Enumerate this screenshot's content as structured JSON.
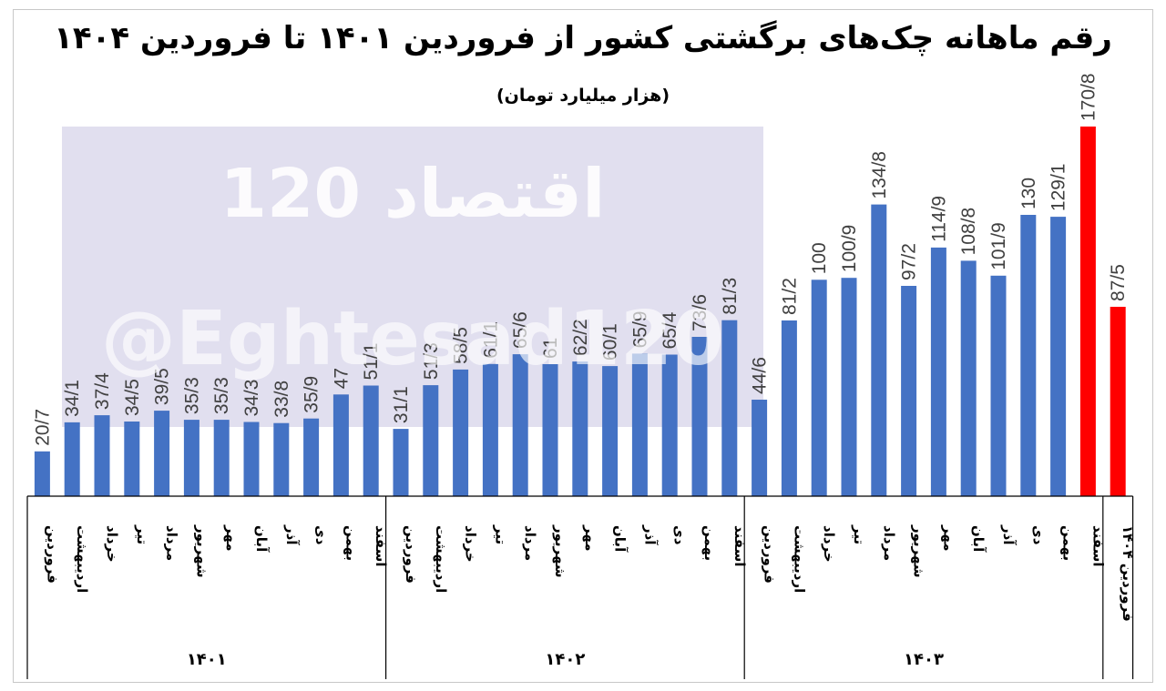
{
  "title": "رقم ماهانه چک‌های برگشتی کشور از فروردین ۱۴۰۱ تا فروردین ۱۴۰۴",
  "subtitle": "(هزار میلیارد تومان)",
  "watermark": {
    "text": "اقتصاد 120",
    "handle": "@Eghtesad120",
    "bg_color": "#dcd9ec"
  },
  "colors": {
    "bar": "#4472c4",
    "highlight": "#ff0000",
    "label": "#404040",
    "axis": "#000000"
  },
  "chart_data": {
    "type": "bar",
    "title": "رقم ماهانه چک‌های برگشتی کشور از فروردین ۱۴۰۱ تا فروردین ۱۴۰۴",
    "subtitle": "(هزار میلیارد تومان)",
    "ylim": [
      0,
      180
    ],
    "grid": false,
    "legend": "none",
    "groups": [
      {
        "label": "۱۴۰۱",
        "months": [
          "فروردین",
          "اردیبهشت",
          "خرداد",
          "تیر",
          "مرداد",
          "شهریور",
          "مهر",
          "آبان",
          "آذر",
          "دی",
          "بهمن",
          "اسفند"
        ]
      },
      {
        "label": "۱۴۰۲",
        "months": [
          "فروردین",
          "اردیبهشت",
          "خرداد",
          "تیر",
          "مرداد",
          "شهریور",
          "مهر",
          "آبان",
          "آذر",
          "دی",
          "بهمن",
          "اسفند"
        ]
      },
      {
        "label": "۱۴۰۳",
        "months": [
          "فروردین",
          "اردیبهشت",
          "خرداد",
          "تیر",
          "مرداد",
          "شهریور",
          "مهر",
          "آبان",
          "آذر",
          "دی",
          "بهمن",
          "اسفند"
        ]
      },
      {
        "label": "",
        "months": [
          "فروردین ۱۴۰۴"
        ]
      }
    ],
    "values": [
      20.7,
      34.1,
      37.4,
      34.5,
      39.5,
      35.3,
      35.3,
      34.3,
      33.8,
      35.9,
      47,
      51.1,
      31.1,
      51.3,
      58.5,
      61.1,
      65.6,
      61,
      62.2,
      60.1,
      65.9,
      65.4,
      73.6,
      81.3,
      44.6,
      81.2,
      100,
      100.9,
      134.8,
      97.2,
      114.9,
      108.8,
      101.9,
      130,
      129.1,
      170.8,
      87.5
    ],
    "value_labels": [
      "20/7",
      "34/1",
      "37/4",
      "34/5",
      "39/5",
      "35/3",
      "35/3",
      "34/3",
      "33/8",
      "35/9",
      "47",
      "51/1",
      "31/1",
      "51/3",
      "58/5",
      "61/1",
      "65/6",
      "61",
      "62/2",
      "60/1",
      "65/9",
      "65/4",
      "73/6",
      "81/3",
      "44/6",
      "81/2",
      "100",
      "100/9",
      "134/8",
      "97/2",
      "114/9",
      "108/8",
      "101/9",
      "130",
      "129/1",
      "170/8",
      "87/5"
    ],
    "highlighted": [
      35,
      36
    ]
  }
}
